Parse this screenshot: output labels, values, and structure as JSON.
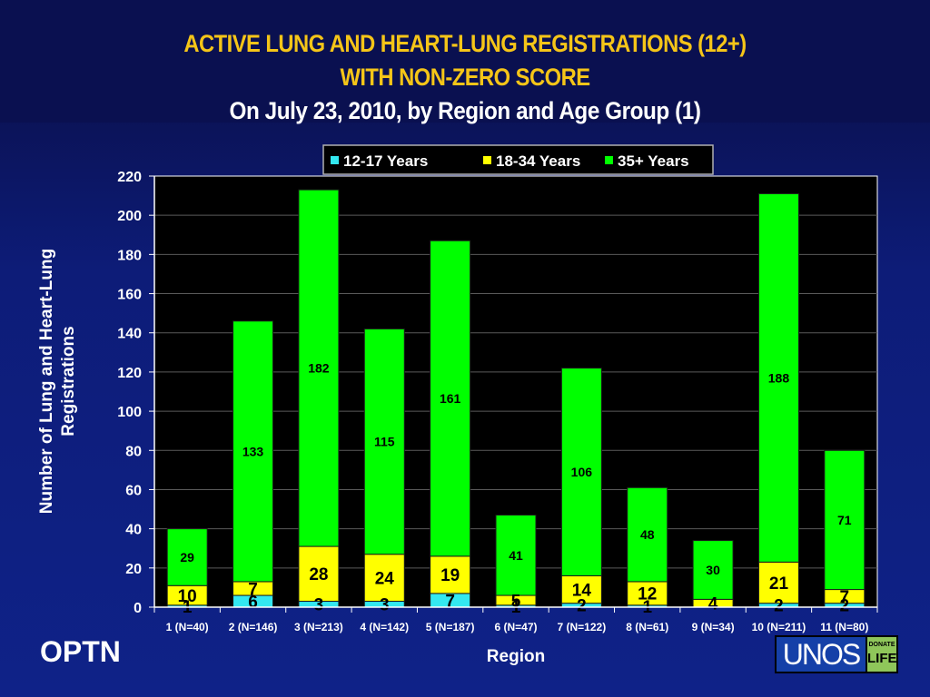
{
  "header": {
    "title_line1": "ACTIVE LUNG AND HEART-LUNG REGISTRATIONS (12+)",
    "title_line2": "WITH NON-ZERO SCORE",
    "subtitle": "On July 23, 2010, by Region and Age Group (1)"
  },
  "footer": {
    "left_logo": "OPTN",
    "right_logo_main": "UNOS",
    "right_logo_top": "DONATE",
    "right_logo_bottom": "LIFE"
  },
  "colors": {
    "series_12_17": "#33e8f0",
    "series_18_34": "#ffff00",
    "series_35_plus": "#00ff00",
    "plot_background": "#000000",
    "title": "#f5c518"
  },
  "chart_data": {
    "type": "bar",
    "stacked": true,
    "title": "ACTIVE LUNG AND HEART-LUNG REGISTRATIONS (12+) WITH NON-ZERO SCORE",
    "subtitle": "On July 23, 2010, by Region and Age Group (1)",
    "xlabel": "Region",
    "ylabel": "Number of Lung and Heart-Lung Registrations",
    "ylim": [
      0,
      220
    ],
    "yticks": [
      0,
      20,
      40,
      60,
      80,
      100,
      120,
      140,
      160,
      180,
      200,
      220
    ],
    "grid": true,
    "legend_position": "top",
    "categories": [
      "1 (N=40)",
      "2 (N=146)",
      "3 (N=213)",
      "4 (N=142)",
      "5 (N=187)",
      "6 (N=47)",
      "7 (N=122)",
      "8 (N=61)",
      "9 (N=34)",
      "10 (N=211)",
      "11 (N=80)"
    ],
    "series": [
      {
        "name": "12-17 Years",
        "color": "#33e8f0",
        "values": [
          1,
          6,
          3,
          3,
          7,
          1,
          2,
          1,
          0,
          2,
          2
        ]
      },
      {
        "name": "18-34 Years",
        "color": "#ffff00",
        "values": [
          10,
          7,
          28,
          24,
          19,
          5,
          14,
          12,
          4,
          21,
          7
        ]
      },
      {
        "name": "35+ Years",
        "color": "#00ff00",
        "values": [
          29,
          133,
          182,
          115,
          161,
          41,
          106,
          48,
          30,
          188,
          71
        ]
      }
    ]
  }
}
